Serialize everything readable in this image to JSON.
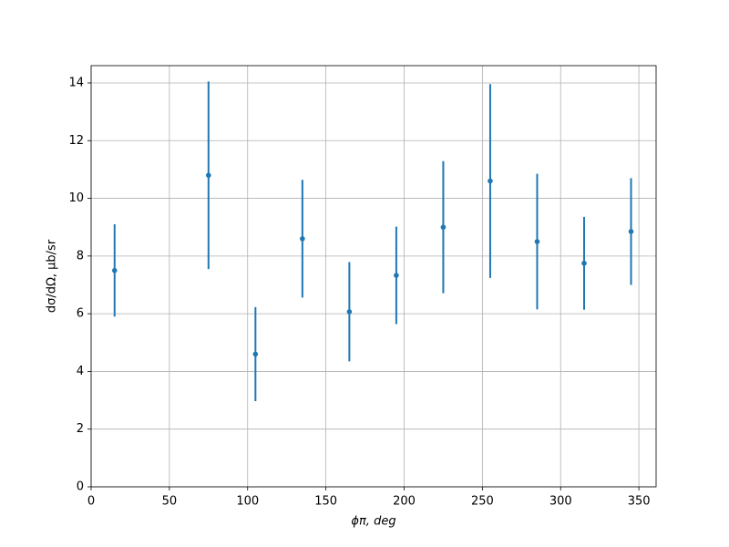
{
  "chart_data": {
    "type": "errorbar",
    "x_label": "ϕπ, deg",
    "y_label": "dσ/dΩ, μb/sr",
    "x": [
      15,
      75,
      105,
      135,
      165,
      195,
      225,
      255,
      285,
      315,
      345
    ],
    "series": [
      {
        "color": "#1f77b4",
        "values": [
          7.5,
          10.8,
          4.6,
          8.6,
          6.07,
          7.33,
          9.0,
          10.6,
          8.5,
          7.75,
          8.85
        ],
        "errors": [
          1.6,
          3.25,
          1.63,
          2.04,
          1.72,
          1.69,
          2.29,
          3.36,
          2.35,
          1.61,
          1.85
        ]
      }
    ],
    "xlim": [
      0,
      361
    ],
    "xticks": [
      0,
      50,
      100,
      150,
      200,
      250,
      300,
      350
    ],
    "ylim": [
      0,
      14.6
    ],
    "yticks": [
      0,
      2,
      4,
      6,
      8,
      10,
      12,
      14
    ],
    "grid": true
  }
}
